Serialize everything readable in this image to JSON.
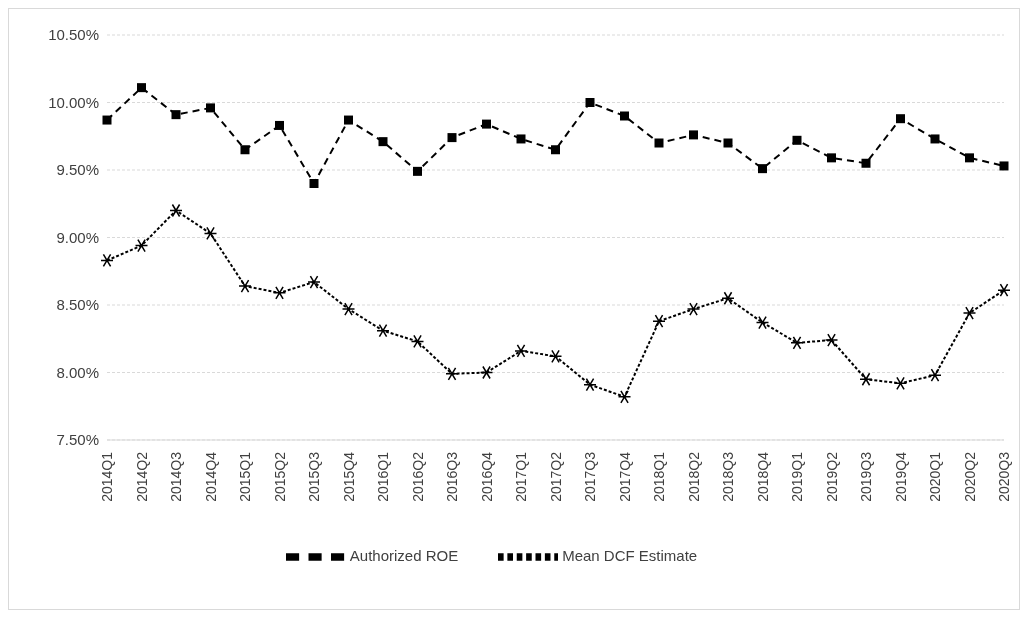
{
  "chart_data": {
    "type": "line",
    "categories": [
      "2014Q1",
      "2014Q2",
      "2014Q3",
      "2014Q4",
      "2015Q1",
      "2015Q2",
      "2015Q3",
      "2015Q4",
      "2016Q1",
      "2016Q2",
      "2016Q3",
      "2016Q4",
      "2017Q1",
      "2017Q2",
      "2017Q3",
      "2017Q4",
      "2018Q1",
      "2018Q2",
      "2018Q3",
      "2018Q4",
      "2019Q1",
      "2019Q2",
      "2019Q3",
      "2019Q4",
      "2020Q1",
      "2020Q2",
      "2020Q3"
    ],
    "series": [
      {
        "name": "Mean DCF Estimate",
        "color": "#000000",
        "marker": "cross",
        "line_style": "dotted",
        "values": [
          8.83,
          8.94,
          9.2,
          9.03,
          8.64,
          8.59,
          8.67,
          8.47,
          8.31,
          8.23,
          7.99,
          8.0,
          8.16,
          8.12,
          7.91,
          7.82,
          8.38,
          8.47,
          8.55,
          8.37,
          8.22,
          8.24,
          7.95,
          7.92,
          7.98,
          8.44,
          8.61
        ]
      },
      {
        "name": "Authorized ROE",
        "color": "#000000",
        "marker": "square",
        "line_style": "dashed",
        "values": [
          9.87,
          10.11,
          9.91,
          9.96,
          9.65,
          9.83,
          9.4,
          9.87,
          9.71,
          9.49,
          9.74,
          9.84,
          9.73,
          9.65,
          10.0,
          9.9,
          9.7,
          9.76,
          9.7,
          9.51,
          9.72,
          9.59,
          9.55,
          9.88,
          9.73,
          9.59,
          9.53
        ]
      }
    ],
    "ylim": [
      7.5,
      10.5
    ],
    "yticks": [
      {
        "value": 7.5,
        "label": "7.50%"
      },
      {
        "value": 8.0,
        "label": "8.00%"
      },
      {
        "value": 8.5,
        "label": "8.50%"
      },
      {
        "value": 9.0,
        "label": "9.00%"
      },
      {
        "value": 9.5,
        "label": "9.50%"
      },
      {
        "value": 10.0,
        "label": "10.00%"
      },
      {
        "value": 10.5,
        "label": "10.50%"
      }
    ],
    "grid": "y",
    "legend": "bottom"
  }
}
